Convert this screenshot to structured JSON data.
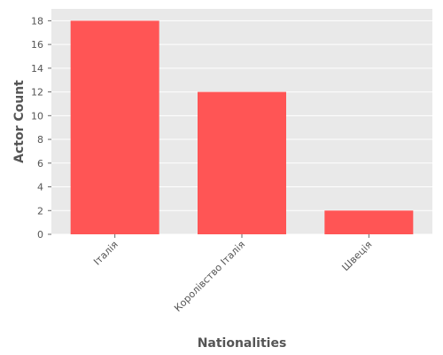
{
  "chart_data": {
    "type": "bar",
    "categories": [
      "Італія",
      "Королівство Італія",
      "Швеція"
    ],
    "values": [
      18,
      12,
      2
    ],
    "xlabel": "Nationalities",
    "ylabel": "Actor Count",
    "ylim": [
      0,
      19
    ],
    "yticks": [
      "0",
      "2",
      "4",
      "6",
      "8",
      "10",
      "12",
      "14",
      "16",
      "18"
    ],
    "grid": true,
    "legend": "none",
    "colors": {
      "bar": "#ff5555",
      "panel": "#e9e9e9",
      "grid": "#ffffff",
      "text": "#555555"
    }
  }
}
